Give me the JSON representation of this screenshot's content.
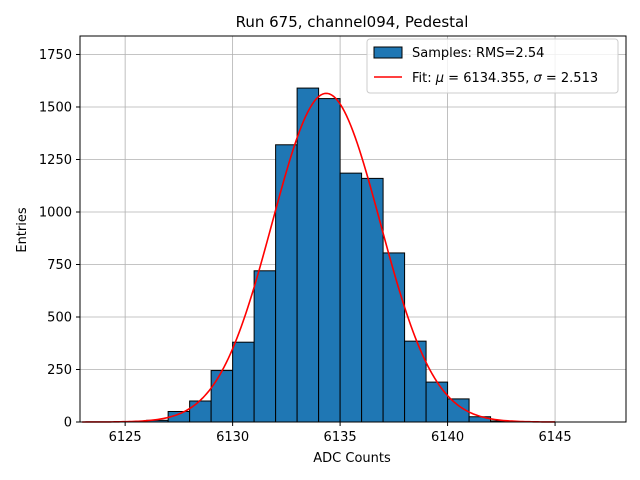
{
  "chart_data": {
    "type": "bar",
    "title": "Run 675, channel094, Pedestal",
    "xlabel": "ADC Counts",
    "ylabel": "Entries",
    "xlim": [
      6122.9,
      6148.3
    ],
    "ylim": [
      0,
      1838
    ],
    "grid": true,
    "legend_position": "top-right",
    "x_ticks": [
      6125,
      6130,
      6135,
      6140,
      6145
    ],
    "y_ticks": [
      0,
      250,
      500,
      750,
      1000,
      1250,
      1500,
      1750
    ],
    "y_tick_labels": [
      "0",
      "250",
      "500",
      "750",
      "1000",
      "1250",
      "1500",
      "1750"
    ],
    "bar_color": "#1f77b4",
    "fit_color": "#ff0000",
    "histogram": {
      "name": "Samples: RMS=2.54",
      "bin_width": 1,
      "bin_starts": [
        6126,
        6127,
        6128,
        6129,
        6130,
        6131,
        6132,
        6133,
        6134,
        6135,
        6136,
        6137,
        6138,
        6139,
        6140,
        6141,
        6142
      ],
      "values": [
        8,
        50,
        100,
        245,
        380,
        720,
        1320,
        1590,
        1540,
        1185,
        1160,
        805,
        385,
        190,
        110,
        25,
        5
      ]
    },
    "fit": {
      "name": "Fit: μ = 6134.355, σ = 2.513",
      "mu": 6134.355,
      "sigma": 2.513,
      "amplitude": 1565,
      "x_range": [
        6123,
        6145
      ]
    },
    "legend": {
      "hist_prefix": "Samples: RMS=2.54",
      "fit_prefix": "Fit: ",
      "fit_mu_symbol": "μ",
      "fit_mu_value": " = 6134.355, ",
      "fit_sigma_symbol": "σ",
      "fit_sigma_value": " = 2.513"
    }
  }
}
